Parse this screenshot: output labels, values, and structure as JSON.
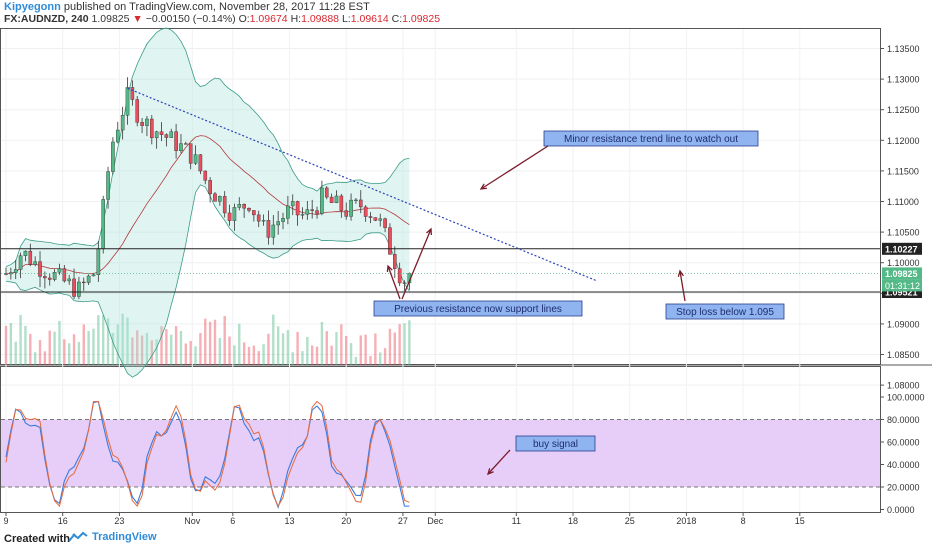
{
  "header": {
    "author": "Kipyegonn",
    "published": "published on TradingView.com, November 28, 2017 11:28 EST",
    "symbol": "FX:AUDNZD, 240",
    "last": "1.09825",
    "change_arrow": "▼",
    "change": "−0.00150 (−0.14%)",
    "o_label": "O:",
    "o_value": "1.09674",
    "h_label": "H:",
    "h_value": "1.09888",
    "l_label": "L:",
    "l_value": "1.09614",
    "c_label": "C:",
    "c_value": "1.09825"
  },
  "footer": {
    "created_with": "Created with",
    "brand": "TradingView"
  },
  "colors": {
    "up": "#53b987",
    "down": "#eb4d5c",
    "band": "#a6e3d6",
    "stoch_zone": "#e3c6f7",
    "trendline": "#2b45b7",
    "annotation_bg": "#8fb4f0",
    "arrow": "#7b1b2a"
  },
  "chart_data": [
    {
      "type": "candlestick",
      "symbol": "FX:AUDNZD",
      "timeframe": "240",
      "y_axis_ticks": [
        "1.13500",
        "1.13000",
        "1.12500",
        "1.12000",
        "1.11500",
        "1.11000",
        "1.10500",
        "1.10000",
        "1.09500",
        "1.09000",
        "1.08500",
        "1.08000"
      ],
      "ylim": [
        1.0775,
        1.1385
      ],
      "x_axis_ticks": [
        "9",
        "16",
        "23",
        "Nov",
        "6",
        "13",
        "20",
        "27",
        "Dec",
        "11",
        "18",
        "25",
        "2018",
        "8",
        "15"
      ],
      "price_tags": [
        "1.10227",
        "1.09825",
        "01:31:12",
        "1.09521"
      ],
      "horizontal_lines": [
        1.10227,
        1.09521
      ],
      "approx_close_path": [
        {
          "d": "Oct 9",
          "v": 1.0982
        },
        {
          "d": "Oct 11",
          "v": 1.1018
        },
        {
          "d": "Oct 13",
          "v": 1.0995
        },
        {
          "d": "Oct 16",
          "v": 1.097
        },
        {
          "d": "Oct 18",
          "v": 1.0955
        },
        {
          "d": "Oct 20",
          "v": 1.0985
        },
        {
          "d": "Oct 22",
          "v": 1.119
        },
        {
          "d": "Oct 23",
          "v": 1.1235
        },
        {
          "d": "Oct 24",
          "v": 1.127
        },
        {
          "d": "Oct 26",
          "v": 1.123
        },
        {
          "d": "Oct 30",
          "v": 1.1195
        },
        {
          "d": "Nov 1",
          "v": 1.1175
        },
        {
          "d": "Nov 3",
          "v": 1.1125
        },
        {
          "d": "Nov 6",
          "v": 1.108
        },
        {
          "d": "Nov 8",
          "v": 1.11
        },
        {
          "d": "Nov 10",
          "v": 1.105
        },
        {
          "d": "Nov 13",
          "v": 1.1085
        },
        {
          "d": "Nov 15",
          "v": 1.1075
        },
        {
          "d": "Nov 17",
          "v": 1.1105
        },
        {
          "d": "Nov 20",
          "v": 1.1085
        },
        {
          "d": "Nov 22",
          "v": 1.1095
        },
        {
          "d": "Nov 24",
          "v": 1.107
        },
        {
          "d": "Nov 27",
          "v": 1.097
        },
        {
          "d": "Nov 28",
          "v": 1.09825
        }
      ],
      "stochastic": {
        "y_axis_ticks": [
          "100.0000",
          "80.0000",
          "60.0000",
          "40.0000",
          "20.0000",
          "0.0000"
        ],
        "ylim": [
          0,
          100
        ],
        "overbought": 80,
        "oversold": 20,
        "last_k": 3,
        "last_d": 5
      },
      "annotations": [
        {
          "text": "Minor resistance trend line to watch out"
        },
        {
          "text": "Previous resistance now support lines"
        },
        {
          "text": "Stop loss below 1.095"
        },
        {
          "text": "buy signal"
        }
      ]
    }
  ]
}
